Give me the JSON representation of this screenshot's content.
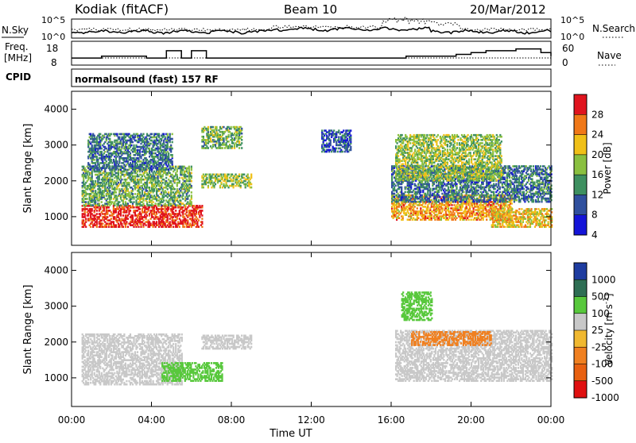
{
  "header": {
    "station": "Kodiak (fitACF)",
    "beam": "Beam 10",
    "date": "20/Mar/2012",
    "cpid_label": "CPID",
    "cpid_value": "normalsound (fast) 157 RF"
  },
  "chart_data": [
    {
      "type": "line",
      "name": "noise-panel",
      "left_axis": {
        "label": "N.Sky",
        "ticks": [
          "10^5",
          "10^0"
        ]
      },
      "right_axis": {
        "label": "N.Search",
        "ticks": [
          "10^5",
          "10^0"
        ]
      },
      "series": [
        {
          "name": "N.Sky",
          "style": "solid"
        },
        {
          "name": "N.Search",
          "style": "dotted"
        }
      ]
    },
    {
      "type": "line",
      "name": "frequency-panel",
      "left_axis": {
        "label_lines": [
          "Freq.",
          "[MHz]"
        ],
        "ticks": [
          18,
          8
        ]
      },
      "right_axis": {
        "label": "Nave",
        "ticks": [
          60,
          0
        ]
      },
      "x": [
        0,
        1.5,
        3.75,
        4.75,
        5.5,
        6,
        6.75,
        7.25,
        8,
        16,
        16.75,
        17.25,
        18,
        19.25,
        20,
        20.75,
        21.75,
        22.25,
        23,
        23.5,
        24
      ],
      "freq_mhz": [
        11,
        12,
        11,
        15,
        11,
        15,
        11,
        11,
        11,
        11,
        12,
        12,
        12,
        13,
        14,
        15,
        15,
        16,
        16,
        14,
        12
      ]
    },
    {
      "type": "heatmap",
      "name": "power-panel",
      "ylabel": "Slant Range [km]",
      "yticks": [
        1000,
        2000,
        3000,
        4000
      ],
      "ylim": [
        200,
        4500
      ],
      "xlim": [
        0,
        24
      ],
      "colorbar": {
        "label": "Power [dB]",
        "ticks": [
          "28",
          "24",
          "20",
          "16",
          "12",
          "8",
          "4"
        ],
        "colors": [
          "#e0141e",
          "#f07818",
          "#f0c018",
          "#8ac040",
          "#3e9060",
          "#30509e",
          "#1414d8"
        ]
      },
      "regions": [
        {
          "t0": 0.5,
          "t1": 6.5,
          "r0": 700,
          "r1": 1300,
          "level": 28
        },
        {
          "t0": 0.5,
          "t1": 6,
          "r0": 1300,
          "r1": 2400,
          "level": 14
        },
        {
          "t0": 0.8,
          "t1": 5,
          "r0": 2300,
          "r1": 3300,
          "level": 10
        },
        {
          "t0": 6.5,
          "t1": 9,
          "r0": 1800,
          "r1": 2200,
          "level": 16
        },
        {
          "t0": 6.5,
          "t1": 8.5,
          "r0": 2900,
          "r1": 3500,
          "level": 14
        },
        {
          "t0": 12.5,
          "t1": 14,
          "r0": 2800,
          "r1": 3400,
          "level": 8
        },
        {
          "t0": 16,
          "t1": 22,
          "r0": 900,
          "r1": 1600,
          "level": 22
        },
        {
          "t0": 16,
          "t1": 24,
          "r0": 1400,
          "r1": 2400,
          "level": 10
        },
        {
          "t0": 16.2,
          "t1": 21.5,
          "r0": 2000,
          "r1": 3300,
          "level": 16
        },
        {
          "t0": 21,
          "t1": 24,
          "r0": 700,
          "r1": 1200,
          "level": 20
        }
      ]
    },
    {
      "type": "heatmap",
      "name": "velocity-panel",
      "ylabel": "Slant Range [km]",
      "yticks": [
        1000,
        2000,
        3000,
        4000
      ],
      "ylim": [
        200,
        4500
      ],
      "xlim": [
        0,
        24
      ],
      "xlabel": "Time UT",
      "xticks": [
        "00:00",
        "04:00",
        "08:00",
        "12:00",
        "16:00",
        "20:00",
        "00:00"
      ],
      "colorbar": {
        "label": "Velocity [m s^-1]",
        "ticks": [
          "1000",
          "500",
          "100",
          "25",
          "-25",
          "-100",
          "-500",
          "-1000"
        ],
        "colors": [
          "#1e3ca0",
          "#2e6e54",
          "#58c83c",
          "#c8c8c8",
          "#f0b830",
          "#f08020",
          "#e86010",
          "#e01010"
        ]
      },
      "regions": [
        {
          "t0": 0.5,
          "t1": 5.5,
          "r0": 800,
          "r1": 2200,
          "level": 0
        },
        {
          "t0": 4.5,
          "t1": 7.5,
          "r0": 900,
          "r1": 1400,
          "level": 120
        },
        {
          "t0": 6.5,
          "t1": 9,
          "r0": 1800,
          "r1": 2200,
          "level": 0
        },
        {
          "t0": 16.2,
          "t1": 24,
          "r0": 900,
          "r1": 2300,
          "level": 0
        },
        {
          "t0": 17,
          "t1": 21,
          "r0": 1900,
          "r1": 2300,
          "level": -150
        },
        {
          "t0": 16.5,
          "t1": 18,
          "r0": 2600,
          "r1": 3400,
          "level": 120
        }
      ]
    }
  ]
}
